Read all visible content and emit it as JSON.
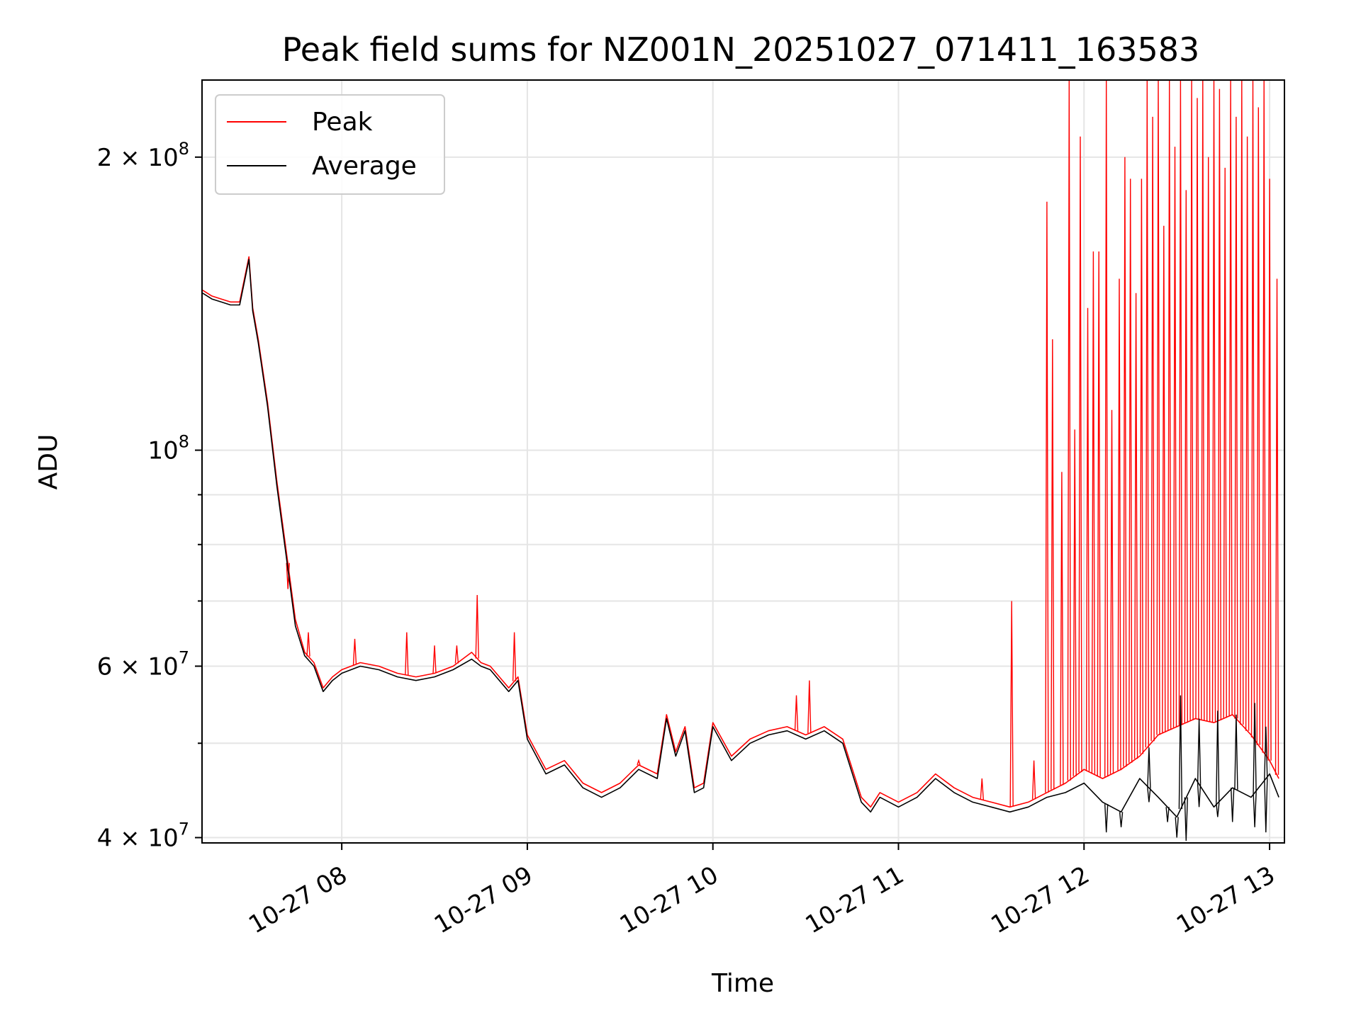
{
  "chart_data": {
    "type": "line",
    "title": "Peak field sums for NZ001N_20251027_071411_163583",
    "xlabel": "Time",
    "ylabel": "ADU",
    "yscale": "log",
    "ylim": [
      39500000,
      240000000
    ],
    "xlim": [
      7.247,
      13.08
    ],
    "grid": true,
    "legend_position": "upper-left",
    "colors": {
      "peak": "#ff0000",
      "average": "#000000",
      "grid": "#e5e5e5",
      "axis": "#000000"
    },
    "x_ticks": [
      {
        "value": 8,
        "label": "10-27 08"
      },
      {
        "value": 9,
        "label": "10-27 09"
      },
      {
        "value": 10,
        "label": "10-27 10"
      },
      {
        "value": 11,
        "label": "10-27 11"
      },
      {
        "value": 12,
        "label": "10-27 12"
      },
      {
        "value": 13,
        "label": "10-27 13"
      }
    ],
    "y_ticks": [
      {
        "value": 40000000,
        "mantissa": "4",
        "times": "×",
        "base": "10",
        "exp": "7"
      },
      {
        "value": 60000000,
        "mantissa": "6",
        "times": "×",
        "base": "10",
        "exp": "7"
      },
      {
        "value": 100000000,
        "mantissa": "",
        "times": "",
        "base": "10",
        "exp": "8"
      },
      {
        "value": 200000000,
        "mantissa": "2",
        "times": "×",
        "base": "10",
        "exp": "8"
      }
    ],
    "y_minor": [
      50000000,
      70000000,
      80000000,
      90000000
    ],
    "series": [
      {
        "name": "Peak",
        "x": [
          7.25,
          7.3,
          7.35,
          7.4,
          7.45,
          7.5,
          7.52,
          7.55,
          7.6,
          7.65,
          7.7,
          7.75,
          7.8,
          7.85,
          7.9,
          7.95,
          8.0,
          8.1,
          8.2,
          8.3,
          8.4,
          8.5,
          8.6,
          8.7,
          8.75,
          8.8,
          8.9,
          8.95,
          9.0,
          9.1,
          9.2,
          9.3,
          9.4,
          9.5,
          9.6,
          9.7,
          9.75,
          9.8,
          9.85,
          9.9,
          9.95,
          10.0,
          10.1,
          10.2,
          10.3,
          10.4,
          10.5,
          10.6,
          10.7,
          10.8,
          10.85,
          10.9,
          11.0,
          11.1,
          11.2,
          11.3,
          11.4,
          11.5,
          11.6,
          11.7,
          11.8,
          11.9,
          12.0,
          12.1,
          12.2,
          12.3,
          12.4,
          12.5,
          12.6,
          12.7,
          12.8,
          12.9,
          13.0,
          13.05
        ],
        "y": [
          146000000.0,
          144000000.0,
          143000000.0,
          142000000.0,
          142000000.0,
          158000000.0,
          140000000.0,
          130000000.0,
          112000000.0,
          93000000.0,
          79000000.0,
          67000000.0,
          62000000.0,
          60500000.0,
          57000000.0,
          58500000.0,
          59500000.0,
          60500000.0,
          60000000.0,
          59000000.0,
          58500000.0,
          59000000.0,
          60000000.0,
          62000000.0,
          60500000.0,
          60000000.0,
          57000000.0,
          58500000.0,
          51000000.0,
          47000000.0,
          48000000.0,
          45500000.0,
          44500000.0,
          45500000.0,
          47500000.0,
          46500000.0,
          53500000.0,
          49000000.0,
          52000000.0,
          45000000.0,
          45500000.0,
          52500000.0,
          48500000.0,
          50500000.0,
          51500000.0,
          52000000.0,
          51000000.0,
          52000000.0,
          50500000.0,
          44000000.0,
          43000000.0,
          44500000.0,
          43500000.0,
          44500000.0,
          46500000.0,
          45000000.0,
          44000000.0,
          43500000.0,
          43000000.0,
          43500000.0,
          44500000.0,
          45500000.0,
          47000000.0,
          46000000.0,
          47000000.0,
          48500000.0,
          51000000.0,
          52000000.0,
          53000000.0,
          52500000.0,
          53500000.0,
          51000000.0,
          48000000.0,
          46000000.0
        ]
      },
      {
        "name": "Average",
        "x": [
          7.25,
          7.3,
          7.35,
          7.4,
          7.45,
          7.5,
          7.52,
          7.55,
          7.6,
          7.65,
          7.7,
          7.75,
          7.8,
          7.85,
          7.9,
          7.95,
          8.0,
          8.1,
          8.2,
          8.3,
          8.4,
          8.5,
          8.6,
          8.7,
          8.75,
          8.8,
          8.9,
          8.95,
          9.0,
          9.1,
          9.2,
          9.3,
          9.4,
          9.5,
          9.6,
          9.7,
          9.75,
          9.8,
          9.85,
          9.9,
          9.95,
          10.0,
          10.1,
          10.2,
          10.3,
          10.4,
          10.5,
          10.6,
          10.7,
          10.8,
          10.85,
          10.9,
          11.0,
          11.1,
          11.2,
          11.3,
          11.4,
          11.5,
          11.6,
          11.7,
          11.8,
          11.9,
          12.0,
          12.1,
          12.2,
          12.3,
          12.4,
          12.5,
          12.6,
          12.7,
          12.8,
          12.9,
          13.0,
          13.05
        ],
        "y": [
          145000000.0,
          143000000.0,
          142000000.0,
          141000000.0,
          141000000.0,
          157000000.0,
          139000000.0,
          129000000.0,
          111000000.0,
          92000000.0,
          78000000.0,
          66000000.0,
          61500000.0,
          60000000.0,
          56500000.0,
          58000000.0,
          59000000.0,
          60000000.0,
          59500000.0,
          58500000.0,
          58000000.0,
          58500000.0,
          59500000.0,
          61000000.0,
          60000000.0,
          59500000.0,
          56500000.0,
          58000000.0,
          50500000.0,
          46500000.0,
          47500000.0,
          45000000.0,
          44000000.0,
          45000000.0,
          47000000.0,
          46000000.0,
          53000000.0,
          48500000.0,
          51500000.0,
          44500000.0,
          45000000.0,
          52000000.0,
          48000000.0,
          50000000.0,
          51000000.0,
          51500000.0,
          50500000.0,
          51500000.0,
          50000000.0,
          43500000.0,
          42500000.0,
          44000000.0,
          43000000.0,
          44000000.0,
          46000000.0,
          44500000.0,
          43500000.0,
          43000000.0,
          42500000.0,
          43000000.0,
          44000000.0,
          44500000.0,
          45500000.0,
          43500000.0,
          42500000.0,
          46000000.0,
          44000000.0,
          42000000.0,
          46000000.0,
          43000000.0,
          45000000.0,
          44000000.0,
          46500000.0,
          44000000.0
        ]
      }
    ],
    "peak_spikes": [
      {
        "x": 7.71,
        "y": 72000000.0
      },
      {
        "x": 7.82,
        "y": 65000000.0
      },
      {
        "x": 8.07,
        "y": 64000000.0
      },
      {
        "x": 8.35,
        "y": 65000000.0
      },
      {
        "x": 8.5,
        "y": 63000000.0
      },
      {
        "x": 8.62,
        "y": 63000000.0
      },
      {
        "x": 8.73,
        "y": 71000000.0
      },
      {
        "x": 8.93,
        "y": 65000000.0
      },
      {
        "x": 9.6,
        "y": 48000000.0
      },
      {
        "x": 10.45,
        "y": 56000000.0
      },
      {
        "x": 10.52,
        "y": 58000000.0
      },
      {
        "x": 11.45,
        "y": 46000000.0
      },
      {
        "x": 11.61,
        "y": 70000000.0
      },
      {
        "x": 11.73,
        "y": 48000000.0
      },
      {
        "x": 11.8,
        "y": 180000000.0
      },
      {
        "x": 11.83,
        "y": 130000000.0
      },
      {
        "x": 11.88,
        "y": 95000000.0
      },
      {
        "x": 11.92,
        "y": 240000000.0
      },
      {
        "x": 11.95,
        "y": 105000000.0
      },
      {
        "x": 11.98,
        "y": 210000000.0
      },
      {
        "x": 12.02,
        "y": 140000000.0
      },
      {
        "x": 12.05,
        "y": 160000000.0
      },
      {
        "x": 12.08,
        "y": 160000000.0
      },
      {
        "x": 12.12,
        "y": 240000000.0
      },
      {
        "x": 12.15,
        "y": 110000000.0
      },
      {
        "x": 12.19,
        "y": 150000000.0
      },
      {
        "x": 12.22,
        "y": 200000000.0
      },
      {
        "x": 12.25,
        "y": 190000000.0
      },
      {
        "x": 12.28,
        "y": 145000000.0
      },
      {
        "x": 12.31,
        "y": 190000000.0
      },
      {
        "x": 12.34,
        "y": 240000000.0
      },
      {
        "x": 12.37,
        "y": 220000000.0
      },
      {
        "x": 12.4,
        "y": 240000000.0
      },
      {
        "x": 12.43,
        "y": 170000000.0
      },
      {
        "x": 12.46,
        "y": 240000000.0
      },
      {
        "x": 12.49,
        "y": 205000000.0
      },
      {
        "x": 12.52,
        "y": 240000000.0
      },
      {
        "x": 12.55,
        "y": 185000000.0
      },
      {
        "x": 12.58,
        "y": 240000000.0
      },
      {
        "x": 12.61,
        "y": 230000000.0
      },
      {
        "x": 12.64,
        "y": 240000000.0
      },
      {
        "x": 12.67,
        "y": 200000000.0
      },
      {
        "x": 12.7,
        "y": 240000000.0
      },
      {
        "x": 12.73,
        "y": 235000000.0
      },
      {
        "x": 12.76,
        "y": 195000000.0
      },
      {
        "x": 12.79,
        "y": 240000000.0
      },
      {
        "x": 12.82,
        "y": 220000000.0
      },
      {
        "x": 12.85,
        "y": 240000000.0
      },
      {
        "x": 12.88,
        "y": 210000000.0
      },
      {
        "x": 12.91,
        "y": 240000000.0
      },
      {
        "x": 12.94,
        "y": 225000000.0
      },
      {
        "x": 12.97,
        "y": 240000000.0
      },
      {
        "x": 13.0,
        "y": 190000000.0
      },
      {
        "x": 13.04,
        "y": 150000000.0
      }
    ],
    "average_dips": [
      {
        "x": 12.12,
        "y": 40500000.0
      },
      {
        "x": 12.2,
        "y": 41000000.0
      },
      {
        "x": 12.35,
        "y": 43500000.0
      },
      {
        "x": 12.45,
        "y": 41500000.0
      },
      {
        "x": 12.5,
        "y": 40000000.0
      },
      {
        "x": 12.55,
        "y": 39700000.0
      },
      {
        "x": 12.62,
        "y": 43000000.0
      },
      {
        "x": 12.72,
        "y": 42000000.0
      },
      {
        "x": 12.8,
        "y": 41500000.0
      },
      {
        "x": 12.92,
        "y": 41000000.0
      },
      {
        "x": 12.98,
        "y": 40500000.0
      }
    ],
    "average_peaks": [
      {
        "x": 12.35,
        "y": 49500000.0
      },
      {
        "x": 12.52,
        "y": 56000000.0
      },
      {
        "x": 12.62,
        "y": 53000000.0
      },
      {
        "x": 12.72,
        "y": 54000000.0
      },
      {
        "x": 12.82,
        "y": 53500000.0
      },
      {
        "x": 12.92,
        "y": 55000000.0
      },
      {
        "x": 12.98,
        "y": 52000000.0
      }
    ]
  }
}
